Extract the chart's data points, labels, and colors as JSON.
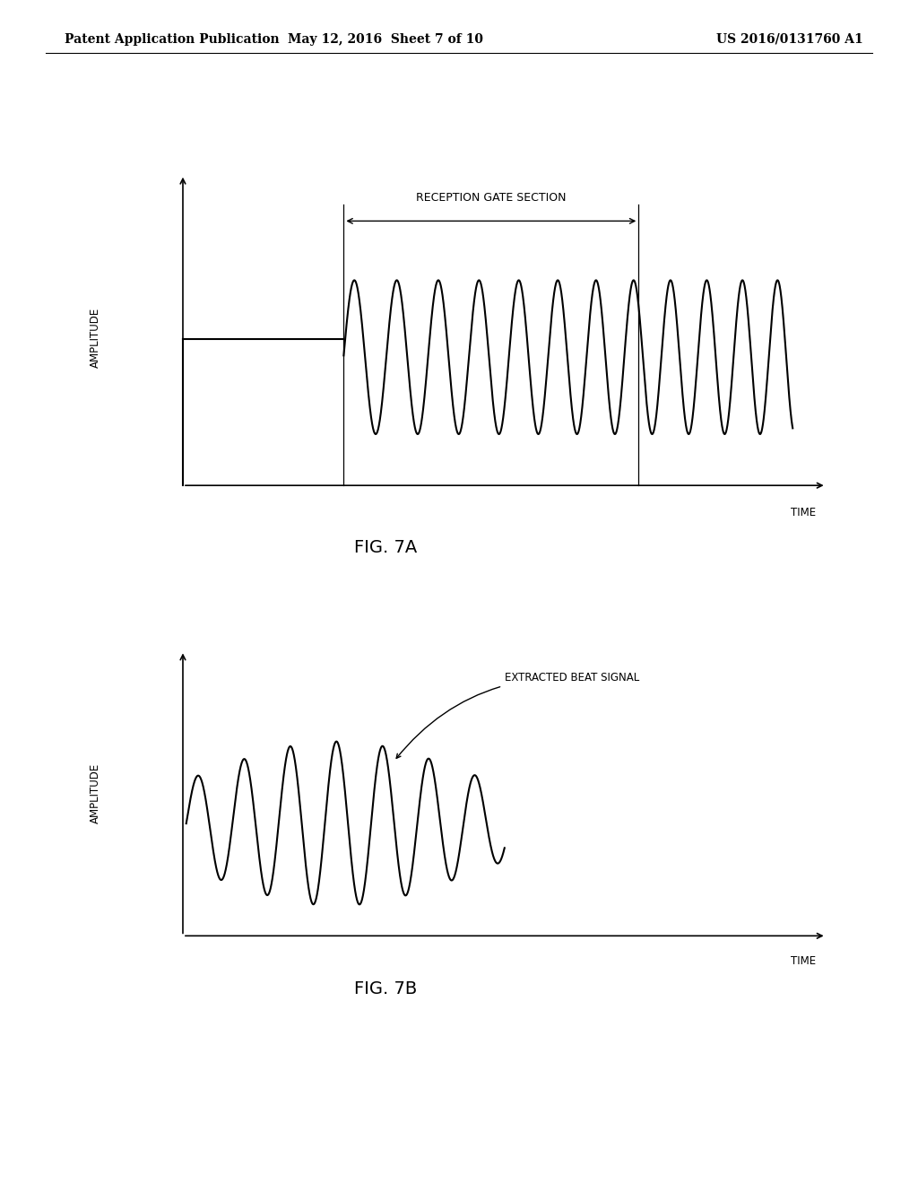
{
  "background_color": "#ffffff",
  "header_left": "Patent Application Publication",
  "header_center": "May 12, 2016  Sheet 7 of 10",
  "header_right": "US 2016/0131760 A1",
  "fig7a_label": "FIG. 7A",
  "fig7b_label": "FIG. 7B",
  "amplitude_label": "AMPLITUDE",
  "time_label": "TIME",
  "reception_gate_label": "RECEPTION GATE SECTION",
  "beat_signal_label": "EXTRACTED BEAT SIGNAL",
  "line_color": "#000000",
  "text_color": "#000000"
}
